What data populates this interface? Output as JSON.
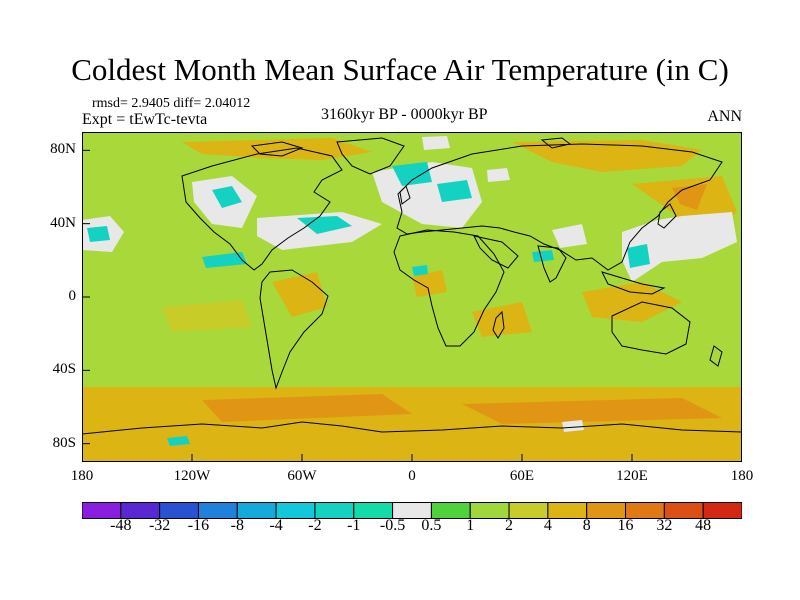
{
  "title": "Coldest Month Mean Surface Air Temperature (in C)",
  "stats": {
    "rmsd_text": "rmsd= 2.9405 diff= 2.04012",
    "expt_text": "Expt = tEwTc-tevta",
    "period_text": "3160kyr BP - 0000kyr BP",
    "season_text": "ANN"
  },
  "map": {
    "projection": "cylindrical-equidistant",
    "lon_range": [
      -180,
      180
    ],
    "lat_range": [
      -90,
      90
    ],
    "lat_ticks": [
      {
        "value": 80,
        "label": "80N"
      },
      {
        "value": 40,
        "label": "40N"
      },
      {
        "value": 0,
        "label": "0"
      },
      {
        "value": -40,
        "label": "40S"
      },
      {
        "value": -80,
        "label": "80S"
      }
    ],
    "lon_ticks": [
      {
        "value": -180,
        "label": "180"
      },
      {
        "value": -120,
        "label": "120W"
      },
      {
        "value": -60,
        "label": "60W"
      },
      {
        "value": 0,
        "label": "0"
      },
      {
        "value": 60,
        "label": "60E"
      },
      {
        "value": 120,
        "label": "120E"
      },
      {
        "value": 180,
        "label": "180"
      }
    ],
    "background_color": "#a8d83a"
  },
  "colorbar": {
    "colors": [
      "#8a1ee0",
      "#5a28d2",
      "#2852d2",
      "#1e82dc",
      "#14aadc",
      "#14c8dc",
      "#14d2c2",
      "#14dca8",
      "#e8e8e8",
      "#50d23c",
      "#a0d83c",
      "#c8cc28",
      "#dcb414",
      "#e09614",
      "#e07814",
      "#dc5014",
      "#d22814"
    ],
    "labels": [
      "-48",
      "-32",
      "-16",
      "-8",
      "-4",
      "-2",
      "-1",
      "-0.5",
      "0.5",
      "1",
      "2",
      "4",
      "8",
      "16",
      "32",
      "48"
    ]
  }
}
